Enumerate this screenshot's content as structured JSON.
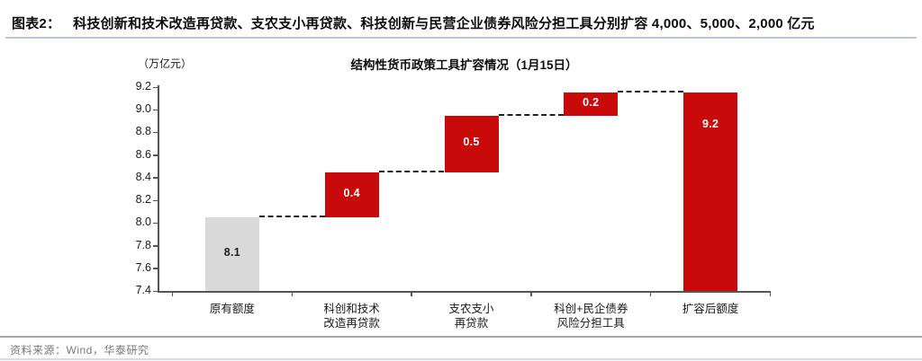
{
  "header": {
    "fig_label": "图表2：",
    "title": "科技创新和技术改造再贷款、支农支小再贷款、科技创新与民营企业债券风险分担工具分别扩容 4,000、5,000、2,000 亿元"
  },
  "chart_data": {
    "type": "bar",
    "subtype": "waterfall",
    "title": "结构性货币政策工具扩容情况（1月15日）",
    "unit_label": "（万亿元）",
    "ylim": [
      7.4,
      9.2
    ],
    "ytick_step": 0.2,
    "grid": false,
    "legend": "none",
    "categories": [
      "原有额度",
      "科创和技术\n改造再贷款",
      "支农支小\n再贷款",
      "科创+民企债券\n风险分担工具",
      "扩容后额度"
    ],
    "values": [
      8.1,
      0.4,
      0.5,
      0.2,
      9.2
    ],
    "bars": [
      {
        "label": "8.1",
        "start": 7.4,
        "end": 8.05,
        "color": "#d9d9d9",
        "label_color": "#1f1f1f",
        "label_pos": "center"
      },
      {
        "label": "0.4",
        "start": 8.05,
        "end": 8.45,
        "color": "#c90a0a",
        "label_color": "#ffffff",
        "label_pos": "center"
      },
      {
        "label": "0.5",
        "start": 8.45,
        "end": 8.95,
        "color": "#c90a0a",
        "label_color": "#ffffff",
        "label_pos": "center"
      },
      {
        "label": "0.2",
        "start": 8.95,
        "end": 9.15,
        "color": "#c90a0a",
        "label_color": "#ffffff",
        "label_pos": "center"
      },
      {
        "label": "9.2",
        "start": 7.4,
        "end": 9.15,
        "color": "#c90a0a",
        "label_color": "#ffffff",
        "label_pos": "top"
      }
    ],
    "connectors": [
      {
        "from": 0,
        "to": 1,
        "level": 8.05
      },
      {
        "from": 1,
        "to": 2,
        "level": 8.45
      },
      {
        "from": 2,
        "to": 3,
        "level": 8.95
      },
      {
        "from": 3,
        "to": 4,
        "level": 9.15
      }
    ],
    "colors": {
      "accent_red": "#c90a0a",
      "neutral_gray": "#d9d9d9",
      "axis": "#555555",
      "connector": "#1f1f1f"
    }
  },
  "footer": {
    "source": "资料来源：Wind，华泰研究"
  }
}
